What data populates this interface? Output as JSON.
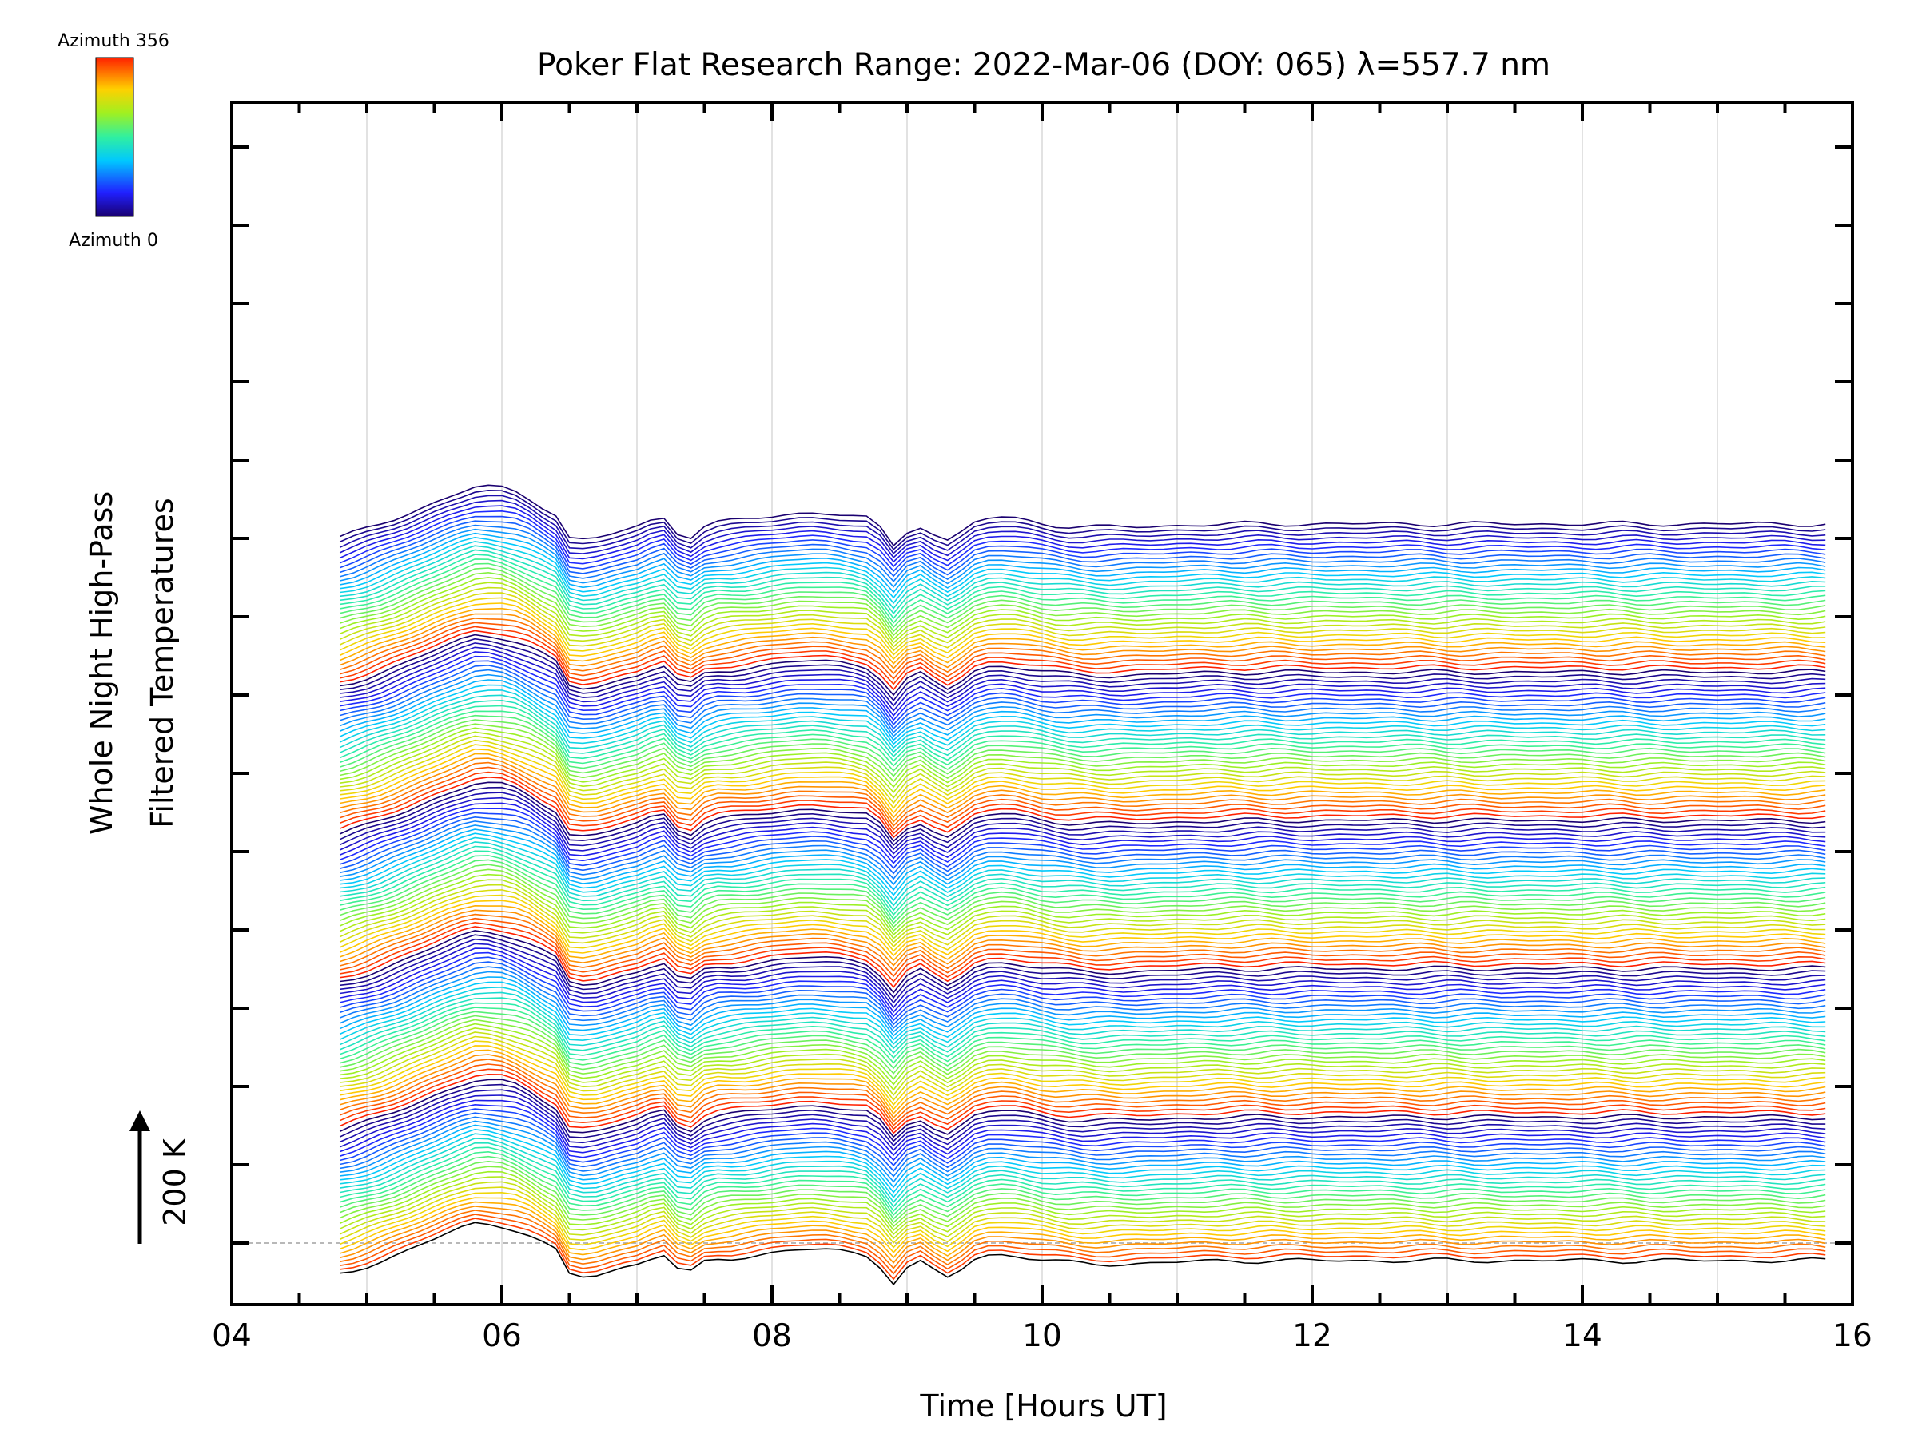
{
  "chart_data": {
    "type": "line",
    "title": "Poker Flat Research Range: 2022-Mar-06 (DOY: 065) λ=557.7 nm",
    "xlabel": "Time [Hours UT]",
    "ylabel_line1": "Whole Night High-Pass",
    "ylabel_line2": "Filtered Temperatures",
    "scale_label": "200 K",
    "xlim": [
      4,
      16
    ],
    "x_major_ticks": [
      "04",
      "06",
      "08",
      "10",
      "12",
      "14",
      "16"
    ],
    "x_grid": true,
    "x_start": 4.8,
    "x_end": 15.85,
    "n_traces": 160,
    "colorbar": {
      "top_label": "Azimuth 356",
      "bottom_label": "Azimuth 0",
      "min": 0,
      "max": 356,
      "colormap": "rainbow"
    },
    "series_note": "stacked high-pass filtered temperature traces, one per azimuth look direction, offset vertically"
  }
}
